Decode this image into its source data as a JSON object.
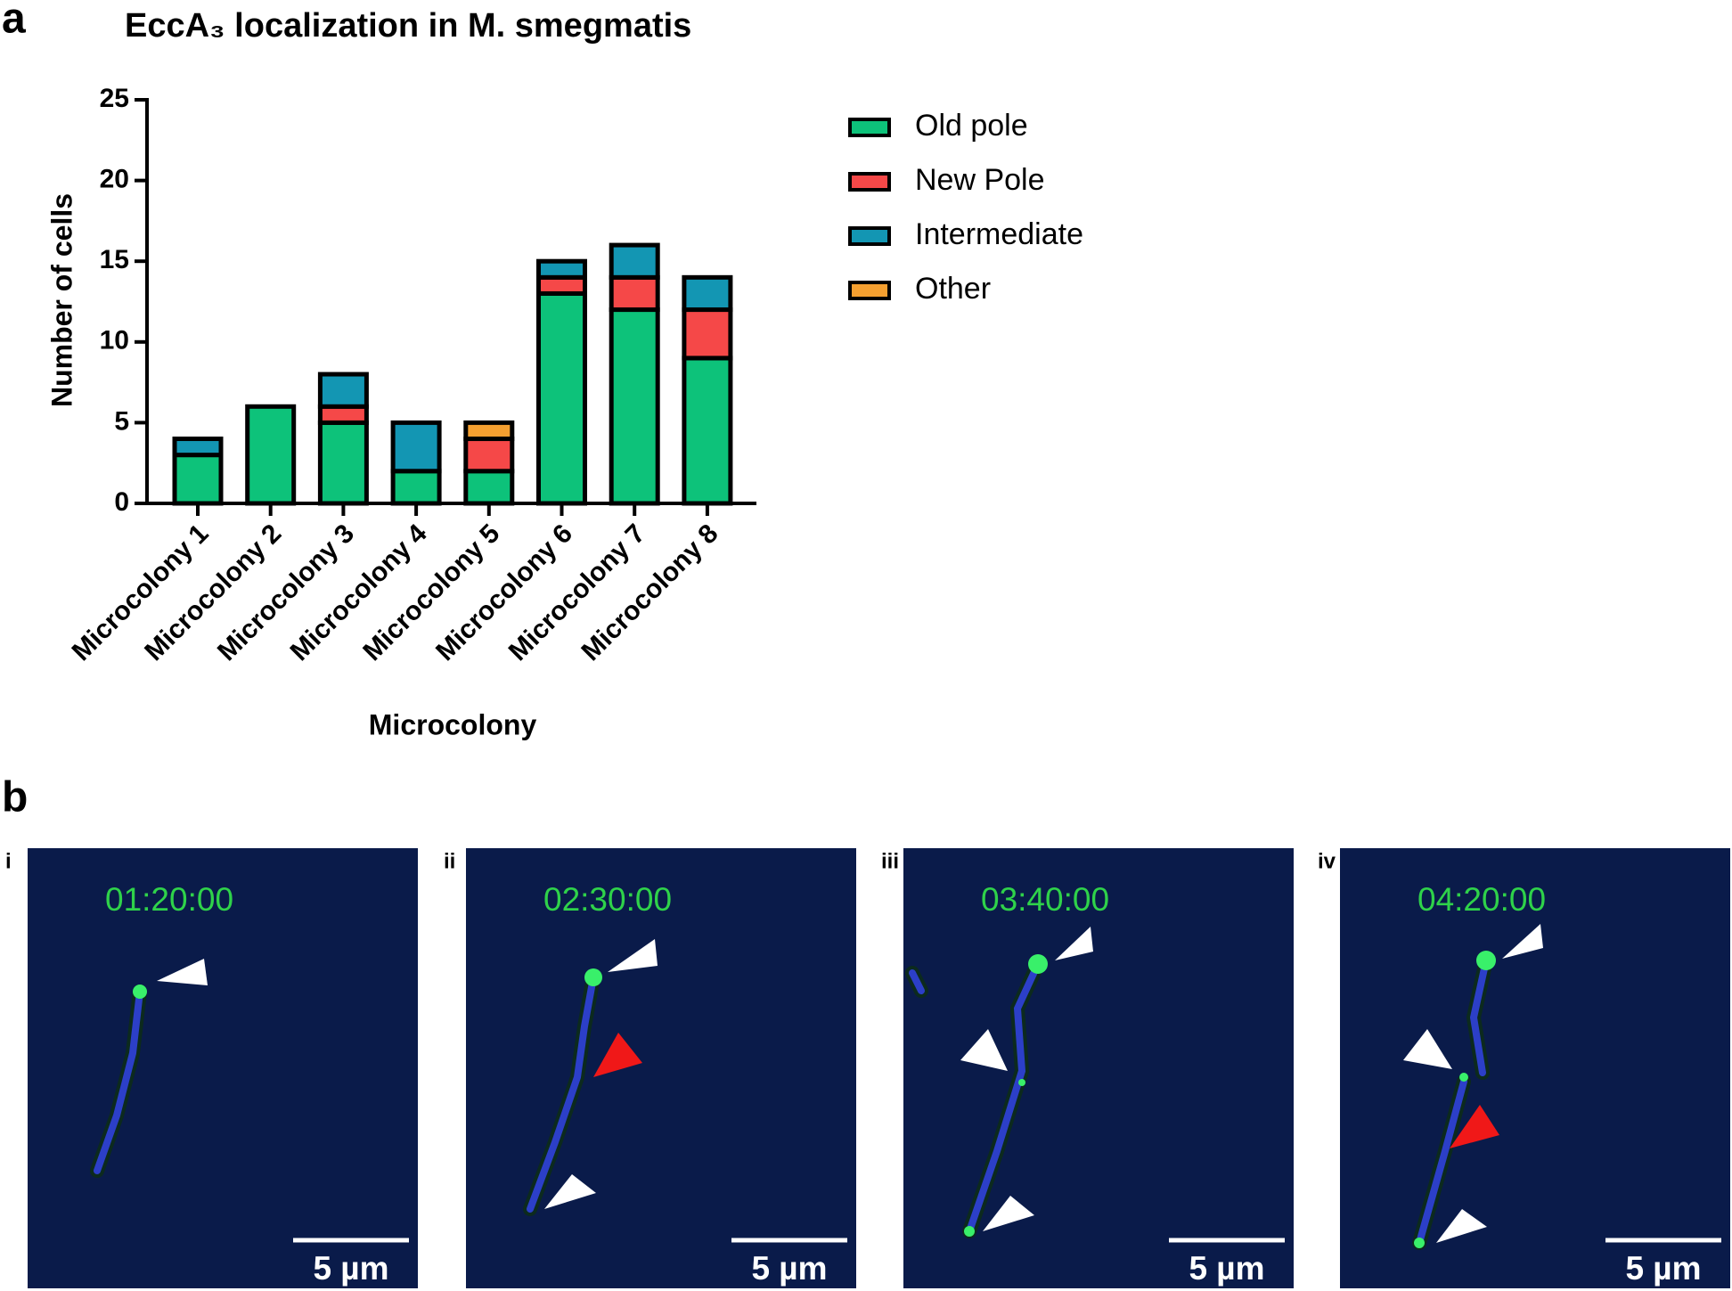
{
  "chart_data": {
    "type": "stacked_bar",
    "title": "EccA₃ localization in M. smegmatis",
    "x_label": "Microcolony",
    "y_label": "Number of cells",
    "categories": [
      "Microcolony 1",
      "Microcolony 2",
      "Microcolony 3",
      "Microcolony 4",
      "Microcolony 5",
      "Microcolony 6",
      "Microcolony 7",
      "Microcolony 8"
    ],
    "series": [
      {
        "name": "Old pole",
        "color": "#0dc27a",
        "values": [
          3,
          6,
          5,
          2,
          2,
          13,
          12,
          9
        ]
      },
      {
        "name": "New Pole",
        "color": "#f54848",
        "values": [
          0,
          0,
          1,
          0,
          2,
          1,
          2,
          3
        ]
      },
      {
        "name": "Intermediate",
        "color": "#1396b3",
        "values": [
          1,
          0,
          2,
          3,
          0,
          1,
          2,
          2
        ]
      },
      {
        "name": "Other",
        "color": "#f5a030",
        "values": [
          0,
          0,
          0,
          0,
          1,
          0,
          0,
          0
        ]
      }
    ],
    "ylim": [
      0,
      25
    ],
    "yticks": [
      0,
      5,
      10,
      15,
      20,
      25
    ],
    "legend": "right"
  },
  "figure": {
    "panel_a": "a",
    "panel_b": "b",
    "images": [
      {
        "label": "i",
        "time": "01:20:00",
        "scale": "5 µm"
      },
      {
        "label": "ii",
        "time": "02:30:00",
        "scale": "5 µm"
      },
      {
        "label": "iii",
        "time": "03:40:00",
        "scale": "5 µm"
      },
      {
        "label": "iv",
        "time": "04:20:00",
        "scale": "5 µm"
      }
    ]
  }
}
